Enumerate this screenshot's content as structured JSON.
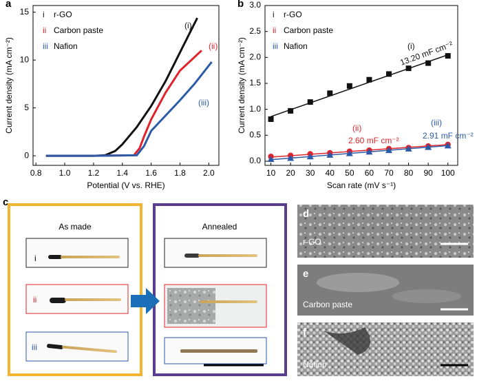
{
  "chart_data": [
    {
      "type": "line",
      "panel": "a",
      "xlabel": "Potential (V vs. RHE)",
      "ylabel": "Current density (mA cm⁻²)",
      "xlim": [
        0.78,
        2.07
      ],
      "ylim": [
        -1,
        15.7
      ],
      "xticks": [
        0.8,
        {
          "value": 1,
          "label": "1.0"
        },
        1.2,
        1.4,
        1.6,
        1.8,
        {
          "value": 2,
          "label": "2.0"
        }
      ],
      "yticks": [
        0,
        5,
        10,
        15
      ],
      "legend_prefixes": [
        "i",
        "ii",
        "iii"
      ],
      "series": [
        {
          "name": "r-GO",
          "color": "#111111",
          "x": [
            0.87,
            1.0,
            1.2,
            1.28,
            1.35,
            1.4,
            1.5,
            1.6,
            1.7,
            1.8,
            1.92
          ],
          "values": [
            0,
            0,
            0,
            0.05,
            0.5,
            1.2,
            3,
            5.2,
            7.8,
            10.8,
            14.4
          ]
        },
        {
          "name": "Carbon paste",
          "color": "#e0232a",
          "x": [
            0.87,
            1.2,
            1.48,
            1.52,
            1.55,
            1.6,
            1.7,
            1.8,
            1.95
          ],
          "values": [
            0,
            0,
            0.05,
            0.8,
            2,
            3.8,
            6.6,
            8.9,
            11
          ]
        },
        {
          "name": "Nafion",
          "color": "#2a5aa8",
          "x": [
            0.87,
            1.2,
            1.5,
            1.55,
            1.6,
            1.7,
            1.8,
            1.9,
            2.02
          ],
          "values": [
            0,
            0,
            0.05,
            1,
            2.6,
            4.2,
            5.8,
            7.5,
            9.8
          ]
        }
      ],
      "annotations": [
        {
          "text": "(i)",
          "color": "#111111"
        },
        {
          "text": "(ii)",
          "color": "#e0232a"
        },
        {
          "text": "(iii)",
          "color": "#2a5aa8"
        }
      ]
    },
    {
      "type": "scatter",
      "panel": "b",
      "xlabel": "Scan rate (mV s⁻¹)",
      "ylabel": "Current density (mA cm⁻²)",
      "xlim": [
        7,
        105
      ],
      "ylim": [
        -0.08,
        3
      ],
      "xticks": [
        10,
        20,
        30,
        40,
        50,
        60,
        70,
        80,
        90,
        100
      ],
      "yticks": [
        {
          "value": 0,
          "label": "0.0"
        },
        0.5,
        {
          "value": 1,
          "label": "1.0"
        },
        1.5,
        {
          "value": 2,
          "label": "2.0"
        },
        2.5,
        {
          "value": 3,
          "label": "3.0"
        }
      ],
      "legend_prefixes": [
        "i",
        "ii",
        "iii"
      ],
      "x": [
        10,
        20,
        30,
        40,
        50,
        60,
        70,
        80,
        90,
        100
      ],
      "fit_x": [
        10,
        100
      ],
      "series": [
        {
          "name": "r-GO",
          "color": "#111111",
          "marker": "square",
          "values": [
            0.81,
            0.97,
            1.14,
            1.31,
            1.45,
            1.57,
            1.68,
            1.79,
            1.89,
            2.03
          ],
          "fit_values": [
            0.86,
            2.05
          ]
        },
        {
          "name": "Carbon paste",
          "color": "#e0232a",
          "marker": "circle",
          "values": [
            0.09,
            0.11,
            0.14,
            0.16,
            0.19,
            0.21,
            0.24,
            0.26,
            0.29,
            0.32
          ],
          "fit_values": [
            0.08,
            0.32
          ]
        },
        {
          "name": "Nafion",
          "color": "#2a5aa8",
          "marker": "triangle",
          "values": [
            0.04,
            0.06,
            0.09,
            0.12,
            0.15,
            0.18,
            0.21,
            0.24,
            0.27,
            0.3
          ],
          "fit_values": [
            0.03,
            0.3
          ]
        }
      ],
      "annotations": [
        {
          "text": "(i)",
          "color": "#111111"
        },
        {
          "text": "13.20 mF cm⁻²",
          "color": "#111111"
        },
        {
          "text": "(ii)",
          "color": "#e0232a"
        },
        {
          "text": "2.60 mF cm⁻²",
          "color": "#e0232a"
        },
        {
          "text": "(iii)",
          "color": "#2a5aa8"
        },
        {
          "text": "2.91 mF cm⁻²",
          "color": "#2a5aa8"
        }
      ]
    }
  ],
  "photo_panel": {
    "label": "c",
    "columns": [
      {
        "title": "As made",
        "items": [
          "i",
          "ii",
          "iii"
        ]
      },
      {
        "title": "Annealed"
      }
    ]
  },
  "sem_panels": [
    {
      "label": "d",
      "caption": "r-GO"
    },
    {
      "label": "e",
      "caption": "Carbon paste"
    },
    {
      "label": "f",
      "caption": "Nafion"
    }
  ]
}
